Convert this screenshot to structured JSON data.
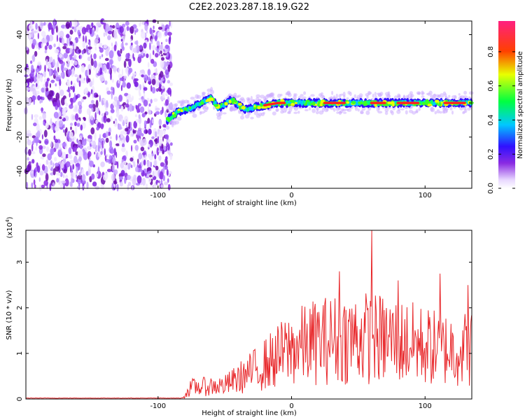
{
  "title": "C2E2.2023.287.18.19.G22",
  "chart_data": [
    {
      "type": "heatmap",
      "xlabel": "Height of straight line (km)",
      "ylabel": "Frequency (Hz)",
      "xlim": [
        -199,
        135
      ],
      "ylim": [
        -50,
        48
      ],
      "xticks": [
        -100,
        0,
        100
      ],
      "yticks": [
        40,
        20,
        0,
        -20,
        -40
      ],
      "grid": false,
      "colorbar": {
        "label": "Normalized spectral amplitude",
        "range": [
          0,
          0.98
        ],
        "ticks": [
          0.0,
          0.2,
          0.4,
          0.6,
          0.8
        ]
      },
      "features": {
        "noise_region_x": [
          -199,
          -90
        ],
        "signal_track": [
          {
            "x": -93,
            "y": -10
          },
          {
            "x": -85,
            "y": -5
          },
          {
            "x": -75,
            "y": -3
          },
          {
            "x": -60,
            "y": 3
          },
          {
            "x": -55,
            "y": -3
          },
          {
            "x": -45,
            "y": 2
          },
          {
            "x": -35,
            "y": -4
          },
          {
            "x": -25,
            "y": -2
          },
          {
            "x": -10,
            "y": 0
          },
          {
            "x": 0,
            "y": 0
          },
          {
            "x": 30,
            "y": 0
          },
          {
            "x": 60,
            "y": 0
          },
          {
            "x": 90,
            "y": 0
          },
          {
            "x": 120,
            "y": 0
          },
          {
            "x": 135,
            "y": 0
          }
        ],
        "red_segments_x": [
          [
            -20,
            -5
          ],
          [
            25,
            40
          ],
          [
            60,
            70
          ],
          [
            80,
            95
          ],
          [
            115,
            130
          ]
        ]
      }
    },
    {
      "type": "line",
      "xlabel": "Height of straight line (km)",
      "ylabel": "SNR (10 * v/v)",
      "yunit": "(x10^4)",
      "xlim": [
        -199,
        135
      ],
      "ylim": [
        0,
        3.7
      ],
      "xticks": [
        -100,
        0,
        100
      ],
      "yticks": [
        0,
        1,
        2,
        3
      ],
      "color": "#e8272a",
      "profile": [
        {
          "x": -199,
          "y": 0.02
        },
        {
          "x": -82,
          "y": 0.02
        },
        {
          "x": -75,
          "y": 0.3
        },
        {
          "x": -50,
          "y": 0.35
        },
        {
          "x": -30,
          "y": 0.7
        },
        {
          "x": -10,
          "y": 1.1
        },
        {
          "x": 0,
          "y": 1.3
        },
        {
          "x": 20,
          "y": 1.5
        },
        {
          "x": 50,
          "y": 1.6
        },
        {
          "x": 80,
          "y": 1.5
        },
        {
          "x": 110,
          "y": 1.3
        },
        {
          "x": 135,
          "y": 1.3
        }
      ],
      "peaks": [
        {
          "x": 36,
          "y": 2.8
        },
        {
          "x": 60,
          "y": 3.7
        },
        {
          "x": 80,
          "y": 2.6
        },
        {
          "x": 111,
          "y": 2.75
        },
        {
          "x": 132,
          "y": 2.5
        }
      ]
    }
  ]
}
